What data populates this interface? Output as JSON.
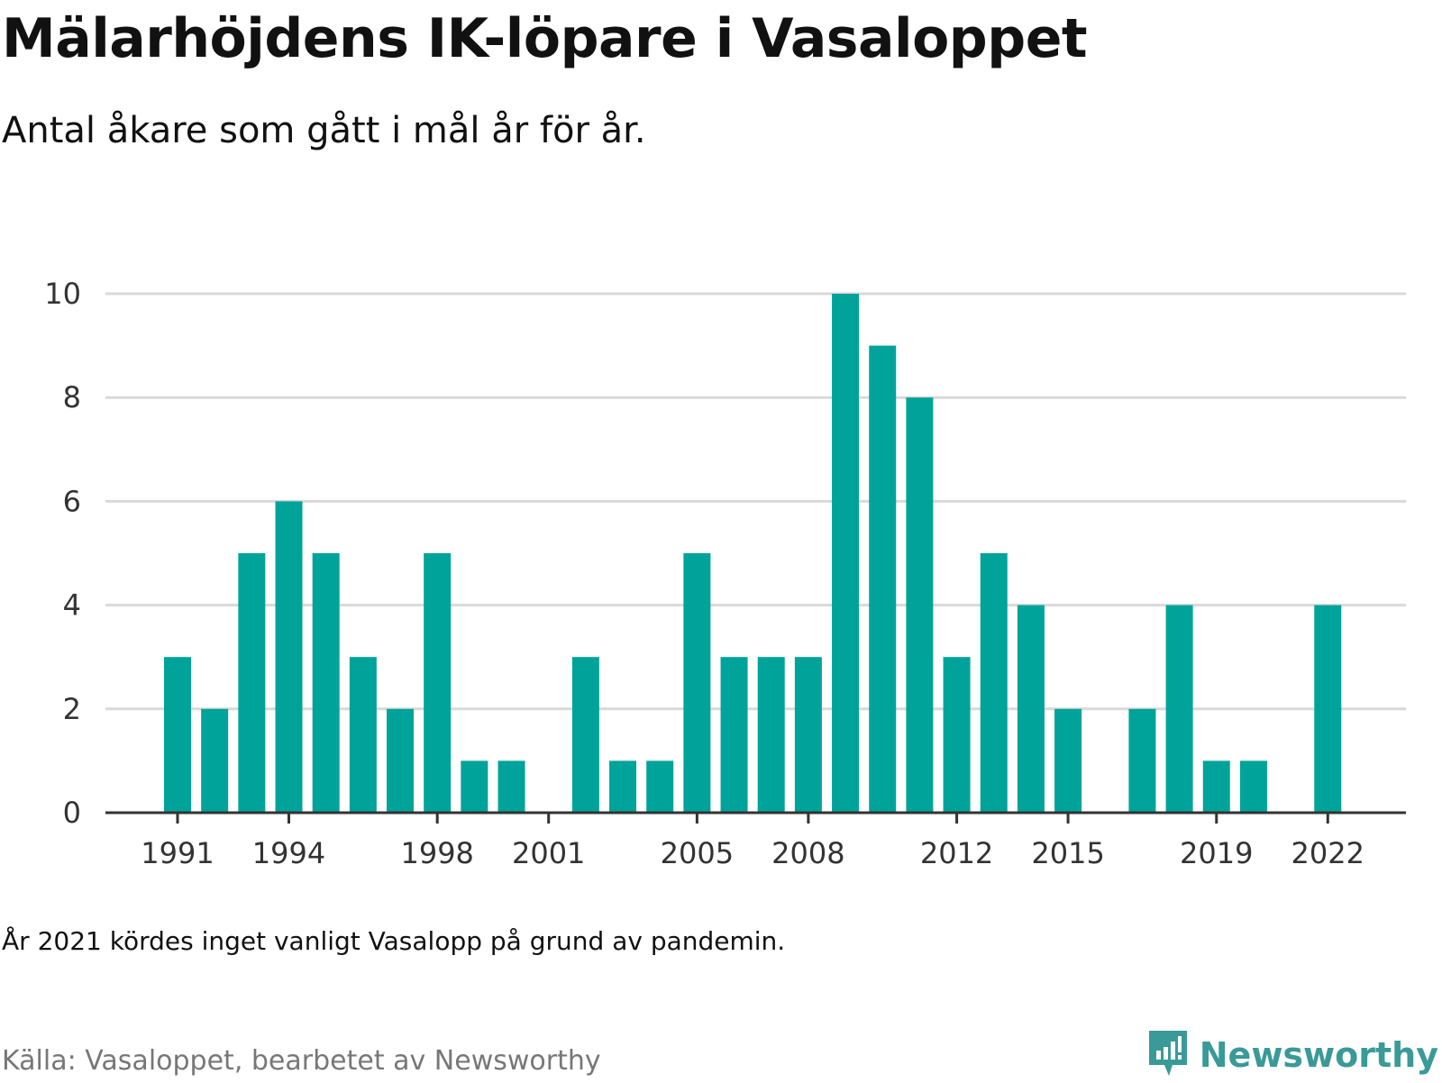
{
  "title": "Mälarhöjdens IK-löpare i Vasaloppet",
  "subtitle": "Antal åkare som gått i mål år för år.",
  "note": "År 2021 kördes inget vanligt Vasalopp på grund av pandemin.",
  "source": "Källa: Vasaloppet, bearbetet av Newsworthy",
  "brand": {
    "name": "Newsworthy",
    "icon": "newsworthy-logo-icon",
    "color": "#3a9a98"
  },
  "chart_data": {
    "type": "bar",
    "title": "Mälarhöjdens IK-löpare i Vasaloppet",
    "subtitle": "Antal åkare som gått i mål år för år.",
    "xlabel": "",
    "ylabel": "",
    "categories": [
      1991,
      1992,
      1993,
      1994,
      1995,
      1996,
      1997,
      1998,
      1999,
      2000,
      2001,
      2002,
      2003,
      2004,
      2005,
      2006,
      2007,
      2008,
      2009,
      2010,
      2011,
      2012,
      2013,
      2014,
      2015,
      2016,
      2017,
      2018,
      2019,
      2020,
      2021,
      2022
    ],
    "values": [
      3,
      2,
      5,
      6,
      5,
      3,
      2,
      5,
      1,
      1,
      0,
      3,
      1,
      1,
      5,
      3,
      3,
      3,
      10,
      9,
      8,
      3,
      5,
      4,
      2,
      0,
      2,
      4,
      1,
      1,
      0,
      4
    ],
    "xticks": [
      1991,
      1994,
      1998,
      2001,
      2005,
      2008,
      2012,
      2015,
      2019,
      2022
    ],
    "yticks": [
      0,
      2,
      4,
      6,
      8,
      10
    ],
    "ylim": [
      0,
      10
    ],
    "grid": true,
    "bar_color": "#00a39a",
    "grid_color": "#d9d9d9",
    "axis_color": "#333333"
  }
}
